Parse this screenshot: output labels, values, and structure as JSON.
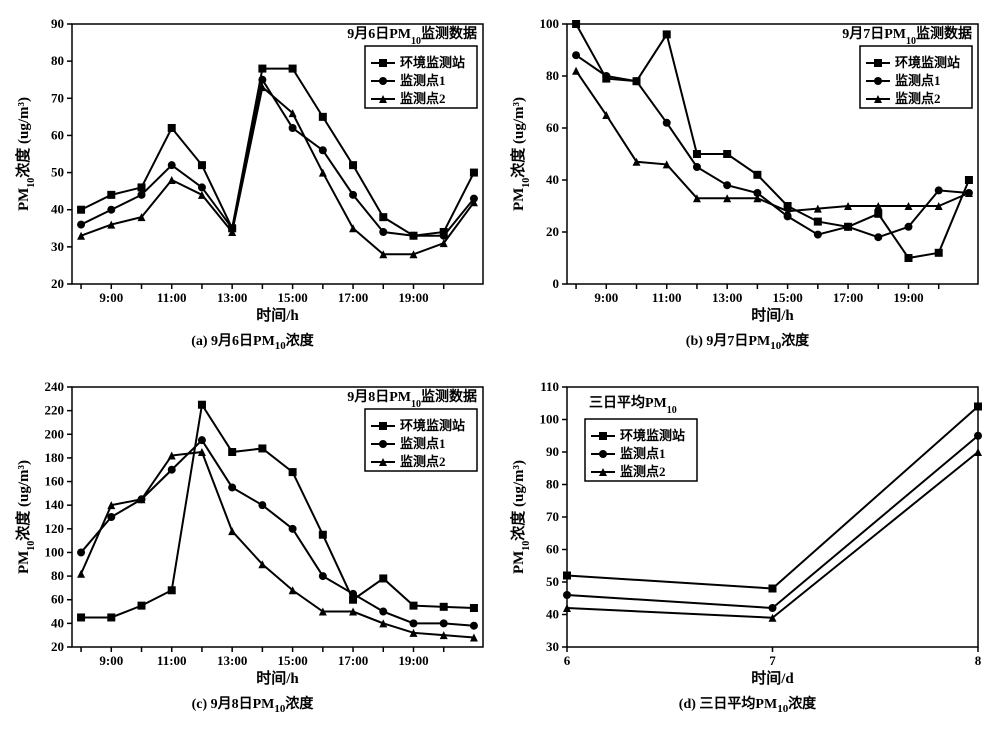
{
  "global": {
    "bg": "#ffffff",
    "fg": "#000000",
    "line_width": 2,
    "marker_size": 4,
    "tick_fontsize": 13,
    "label_fontsize": 15,
    "title_fontsize": 14,
    "caption_fontsize": 14
  },
  "series_names": [
    "环境监测站",
    "监测点1",
    "监测点2"
  ],
  "series_markers": [
    "square",
    "circle",
    "triangle"
  ],
  "series_colors": [
    "#000000",
    "#000000",
    "#000000"
  ],
  "panels": [
    {
      "id": "a",
      "caption": "(a) 9月6日PM₁₀浓度",
      "title": "9月6日PM₁₀监测数据",
      "xlabel": "时间/h",
      "ylabel": "PM₁₀浓度 (ug/m³)",
      "x_type": "category",
      "x_ticks": [
        "9:00",
        "11:00",
        "13:00",
        "15:00",
        "17:00",
        "19:00"
      ],
      "x_categories": [
        "8:00",
        "9:00",
        "10:00",
        "11:00",
        "12:00",
        "13:00",
        "14:00",
        "15:00",
        "16:00",
        "17:00",
        "18:00",
        "19:00",
        "20:00"
      ],
      "ylim": [
        20,
        90
      ],
      "ytick_step": 10,
      "series": [
        [
          40,
          44,
          46,
          62,
          52,
          35,
          78,
          78,
          65,
          52,
          38,
          33,
          34,
          50
        ],
        [
          36,
          40,
          44,
          52,
          46,
          35,
          75,
          62,
          56,
          44,
          34,
          33,
          33,
          43
        ],
        [
          33,
          36,
          38,
          48,
          44,
          34,
          73,
          66,
          50,
          35,
          28,
          28,
          31,
          42
        ]
      ],
      "x_positions": [
        0,
        1,
        2,
        3,
        4,
        5,
        6,
        7,
        8,
        9,
        10,
        11,
        12,
        13
      ],
      "legend_pos": "top-right"
    },
    {
      "id": "b",
      "caption": "(b) 9月7日PM₁₀浓度",
      "title": "9月7日PM₁₀监测数据",
      "xlabel": "时间/h",
      "ylabel": "PM₁₀浓度 (ug/m³)",
      "x_type": "category",
      "x_ticks": [
        "9:00",
        "11:00",
        "13:00",
        "15:00",
        "17:00",
        "19:00"
      ],
      "x_categories": [
        "8:00",
        "9:00",
        "10:00",
        "11:00",
        "12:00",
        "13:00",
        "14:00",
        "15:00",
        "16:00",
        "17:00",
        "18:00",
        "19:00",
        "20:00"
      ],
      "ylim": [
        0,
        100
      ],
      "ytick_step": 20,
      "series": [
        [
          100,
          79,
          78,
          96,
          50,
          50,
          42,
          30,
          24,
          22,
          27,
          10,
          12,
          40
        ],
        [
          88,
          80,
          78,
          62,
          45,
          38,
          35,
          26,
          19,
          22,
          18,
          22,
          36,
          35
        ],
        [
          82,
          65,
          47,
          46,
          33,
          33,
          33,
          28,
          29,
          30,
          30,
          30,
          30,
          35
        ]
      ],
      "x_positions": [
        0,
        1,
        2,
        3,
        4,
        5,
        6,
        7,
        8,
        9,
        10,
        11,
        12,
        13
      ],
      "legend_pos": "top-right"
    },
    {
      "id": "c",
      "caption": "(c) 9月8日PM₁₀浓度",
      "title": "9月8日PM₁₀监测数据",
      "xlabel": "时间/h",
      "ylabel": "PM₁₀浓度 (ug/m³)",
      "x_type": "category",
      "x_ticks": [
        "9:00",
        "11:00",
        "13:00",
        "15:00",
        "17:00",
        "19:00"
      ],
      "x_categories": [
        "8:00",
        "9:00",
        "10:00",
        "11:00",
        "12:00",
        "13:00",
        "14:00",
        "15:00",
        "16:00",
        "17:00",
        "18:00",
        "19:00",
        "20:00"
      ],
      "ylim": [
        20,
        240
      ],
      "ytick_step": 20,
      "series": [
        [
          45,
          45,
          55,
          68,
          225,
          185,
          188,
          168,
          115,
          60,
          78,
          55,
          54,
          53
        ],
        [
          100,
          130,
          145,
          170,
          195,
          155,
          140,
          120,
          80,
          65,
          50,
          40,
          40,
          38
        ],
        [
          82,
          140,
          145,
          182,
          185,
          118,
          90,
          68,
          50,
          50,
          40,
          32,
          30,
          28
        ]
      ],
      "x_positions": [
        0,
        1,
        2,
        3,
        4,
        5,
        6,
        7,
        8,
        9,
        10,
        11,
        12,
        13
      ],
      "legend_pos": "top-right"
    },
    {
      "id": "d",
      "caption": "(d) 三日平均PM₁₀浓度",
      "title": "三日平均PM₁₀",
      "xlabel": "时间/d",
      "ylabel": "PM₁₀浓度 (ug/m³)",
      "x_type": "numeric",
      "xlim": [
        6,
        8
      ],
      "x_ticks": [
        6,
        7,
        8
      ],
      "ylim": [
        30,
        110
      ],
      "ytick_step": 10,
      "series": [
        [
          52,
          48,
          104
        ],
        [
          46,
          42,
          95
        ],
        [
          42,
          39,
          90
        ]
      ],
      "x_positions": [
        6,
        7,
        8
      ],
      "legend_pos": "top-left-inset"
    }
  ]
}
